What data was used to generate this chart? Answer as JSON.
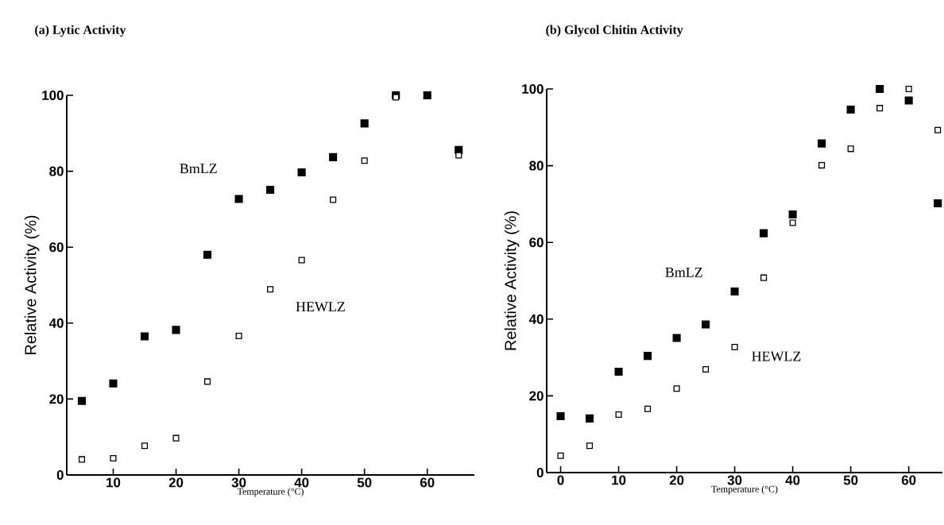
{
  "chart_data": [
    {
      "type": "scatter",
      "title": "(a) Lytic Activity",
      "xlabel": "Temperature (°C)",
      "ylabel": "Relative Activity (%)",
      "marker": "square",
      "x": [
        5,
        10,
        15,
        20,
        25,
        30,
        35,
        40,
        45,
        50,
        55,
        60,
        65
      ],
      "series": [
        {
          "name": "BmLZ",
          "color": "#000000",
          "values": [
            19.5,
            24.1,
            36.5,
            38.2,
            58.0,
            72.7,
            75.1,
            79.7,
            83.7,
            92.6,
            100,
            100,
            85.6
          ]
        },
        {
          "name": "HEWLZ",
          "color": "#000000",
          "values": [
            4.1,
            4.4,
            7.7,
            9.7,
            24.6,
            36.6,
            48.9,
            56.6,
            72.5,
            82.8,
            99.5,
            null,
            84.2
          ]
        }
      ],
      "xlim": [
        2.6,
        67.5
      ],
      "ylim": [
        0,
        100
      ],
      "xticks": [
        10,
        20,
        30,
        40,
        50,
        60
      ],
      "yticks": [
        0,
        20,
        40,
        60,
        80,
        100
      ]
    },
    {
      "type": "scatter",
      "title": "(b) Glycol Chitin Activity",
      "xlabel": "Temperature (°C)",
      "ylabel": "Relative Activity (%)",
      "marker": "square",
      "x": [
        0,
        5,
        10,
        15,
        20,
        25,
        30,
        35,
        40,
        45,
        50,
        55,
        60,
        65
      ],
      "series": [
        {
          "name": "BmLZ",
          "color": "#000000",
          "values": [
            14.7,
            14.1,
            26.3,
            30.4,
            35.1,
            38.6,
            47.2,
            62.4,
            67.3,
            85.8,
            94.6,
            100,
            97.0,
            70.2
          ]
        },
        {
          "name": "HEWLZ",
          "color": "#000000",
          "values": [
            4.4,
            7.0,
            15.1,
            16.6,
            21.9,
            26.9,
            32.7,
            50.8,
            65.1,
            80.1,
            84.4,
            95.0,
            100,
            89.3
          ]
        }
      ],
      "xlim": [
        -2.4,
        65.8
      ],
      "ylim": [
        0,
        100
      ],
      "xticks": [
        0,
        10,
        20,
        30,
        40,
        50,
        60
      ],
      "yticks": [
        0,
        20,
        40,
        60,
        80,
        100
      ]
    }
  ]
}
